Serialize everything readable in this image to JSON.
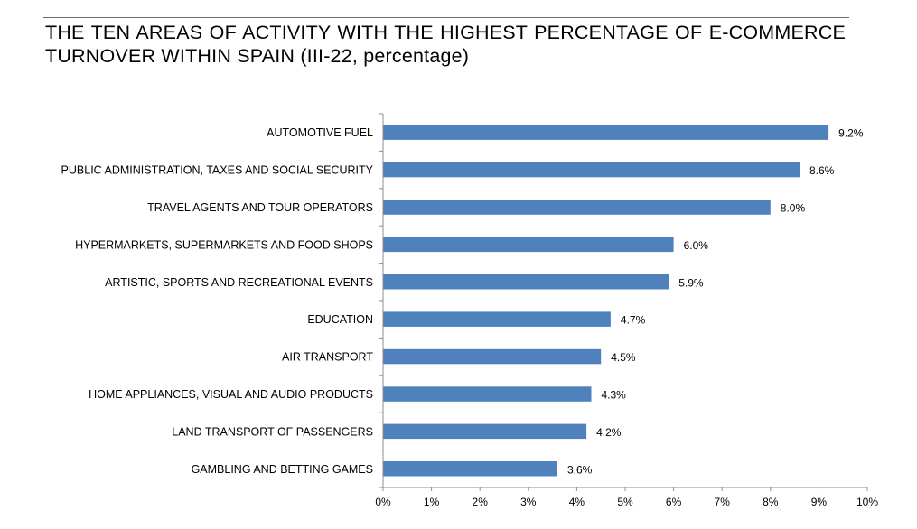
{
  "title": "THE TEN AREAS OF ACTIVITY WITH THE HIGHEST PERCENTAGE OF E-COMMERCE TURNOVER WITHIN SPAIN (III-22, percentage)",
  "chart_data": {
    "type": "bar",
    "orientation": "horizontal",
    "categories": [
      "AUTOMOTIVE FUEL",
      "PUBLIC ADMINISTRATION, TAXES AND SOCIAL SECURITY",
      "TRAVEL AGENTS AND TOUR OPERATORS",
      "HYPERMARKETS, SUPERMARKETS AND FOOD SHOPS",
      "ARTISTIC, SPORTS AND RECREATIONAL EVENTS",
      "EDUCATION",
      "AIR TRANSPORT",
      "HOME APPLIANCES, VISUAL AND AUDIO PRODUCTS",
      "LAND TRANSPORT OF PASSENGERS",
      "GAMBLING AND BETTING GAMES"
    ],
    "values": [
      9.2,
      8.6,
      8.0,
      6.0,
      5.9,
      4.7,
      4.5,
      4.3,
      4.2,
      3.6
    ],
    "value_labels": [
      "9.2%",
      "8.6%",
      "8.0%",
      "6.0%",
      "5.9%",
      "4.7%",
      "4.5%",
      "4.3%",
      "4.2%",
      "3.6%"
    ],
    "xlim": [
      0,
      10
    ],
    "x_ticks": [
      0,
      1,
      2,
      3,
      4,
      5,
      6,
      7,
      8,
      9,
      10
    ],
    "x_tick_labels": [
      "0%",
      "1%",
      "2%",
      "3%",
      "4%",
      "5%",
      "6%",
      "7%",
      "8%",
      "9%",
      "10%"
    ],
    "bar_color": "#4f81bd",
    "grid": false,
    "legend": "none"
  }
}
